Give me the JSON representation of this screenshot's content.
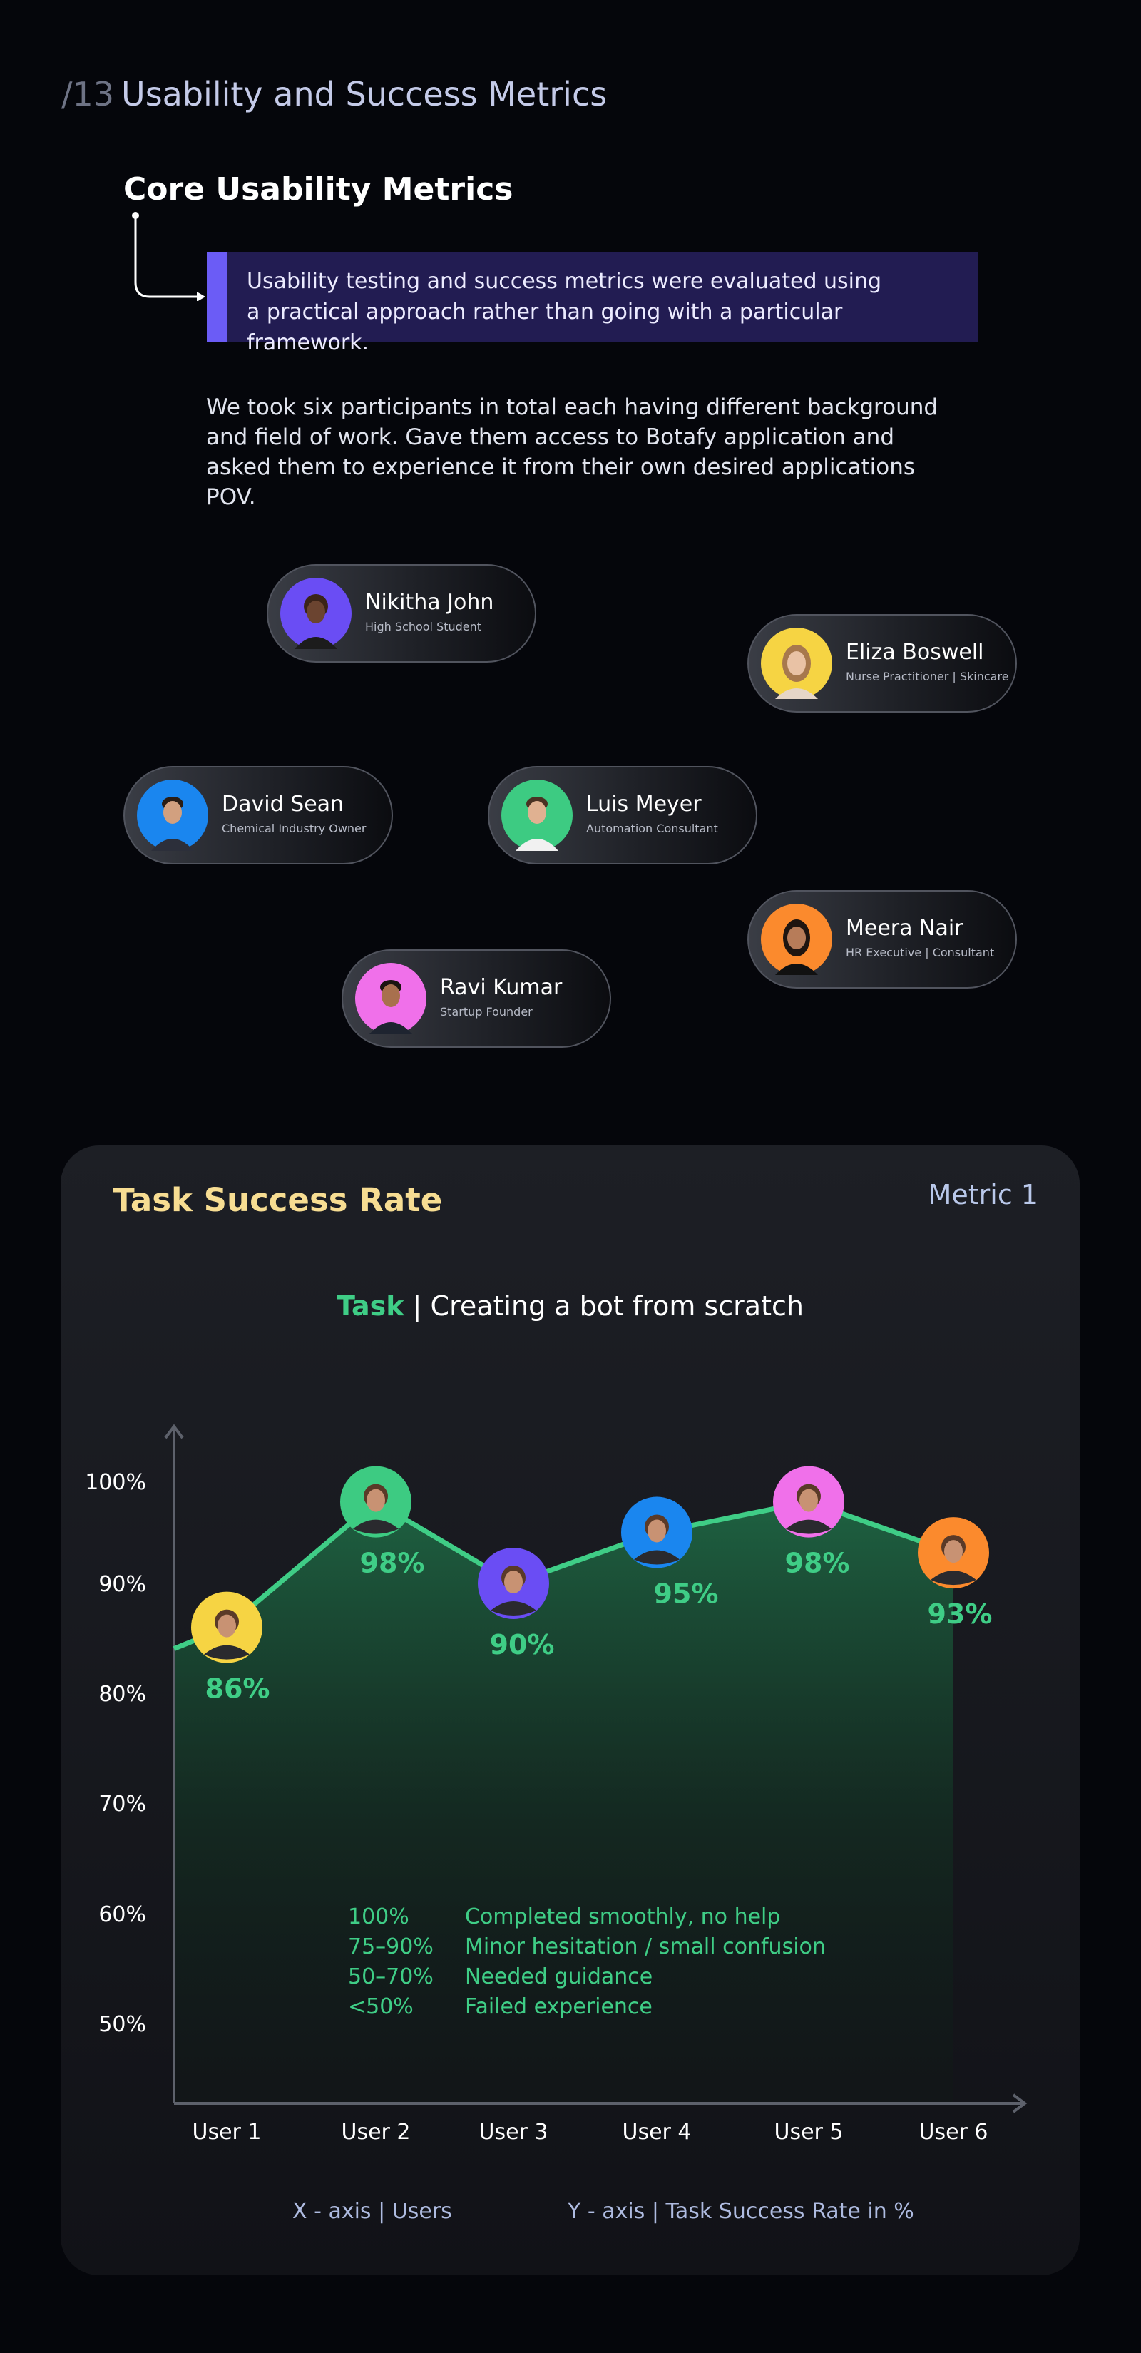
{
  "header": {
    "number": "/13",
    "title": "Usability and Success Metrics"
  },
  "core": {
    "title": "Core Usability Metrics",
    "callout_line1": "Usability testing and success metrics were evaluated using",
    "callout_line2": "a practical approach rather than going with a particular framework.",
    "intro": "We took six participants in total each having different background and field of work. Gave them access to Botafy application and asked them to experience it from their own desired applications POV."
  },
  "participants": [
    {
      "name": "Nikitha John",
      "role": "High School Student",
      "avatar_color": "#6a4df4",
      "avatar_icon": "person-avatar-icon"
    },
    {
      "name": "Eliza Boswell",
      "role": "Nurse Practitioner | Skincare",
      "avatar_color": "#f6d443",
      "avatar_icon": "person-avatar-icon"
    },
    {
      "name": "David Sean",
      "role": "Chemical Industry Owner",
      "avatar_color": "#1a86ef",
      "avatar_icon": "person-avatar-icon"
    },
    {
      "name": "Luis Meyer",
      "role": "Automation Consultant",
      "avatar_color": "#3dcb82",
      "avatar_icon": "person-avatar-icon"
    },
    {
      "name": "Meera Nair",
      "role": "HR Executive | Consultant",
      "avatar_color": "#fb8a2d",
      "avatar_icon": "person-avatar-icon"
    },
    {
      "name": "Ravi Kumar",
      "role": "Startup Founder",
      "avatar_color": "#f070ea",
      "avatar_icon": "person-avatar-icon"
    }
  ],
  "metric_card": {
    "title": "Task Success Rate",
    "metric_label": "Metric 1",
    "task_label": "Task",
    "task_text": " | Creating a bot from scratch",
    "legend": [
      {
        "range": "100%",
        "desc": "Completed smoothly, no help"
      },
      {
        "range": "75–90%",
        "desc": "Minor hesitation / small confusion"
      },
      {
        "range": "50–70%",
        "desc": "Needed guidance"
      },
      {
        "range": "<50%",
        "desc": "Failed experience"
      }
    ],
    "x_axis_note": "X - axis  |   Users",
    "y_axis_note": "Y - axis  |   Task Success Rate in %"
  },
  "colors": {
    "accent_green": "#3fcd86",
    "accent_yellow": "#f7dd92",
    "callout_bg": "#221c52",
    "callout_bar": "#6b5cf6"
  },
  "chart_data": {
    "type": "line",
    "title": "Task Success Rate",
    "xlabel": "Users",
    "ylabel": "Task Success Rate in %",
    "categories": [
      "User 1",
      "User 2",
      "User 3",
      "User 4",
      "User 5",
      "User 6"
    ],
    "values": [
      86,
      98,
      90,
      95,
      98,
      93
    ],
    "data_labels": [
      "86%",
      "98%",
      "90%",
      "95%",
      "98%",
      "93%"
    ],
    "y_ticks": [
      100,
      90,
      80,
      70,
      60,
      50
    ],
    "y_tick_labels": [
      "100%",
      "90%",
      "80%",
      "70%",
      "60%",
      "50%"
    ],
    "avatar_colors": [
      "#f6d443",
      "#3dcb82",
      "#6a4df4",
      "#1a86ef",
      "#f070ea",
      "#fb8a2d"
    ],
    "line_color": "#3fcd86",
    "area_fill": "gradient green",
    "grid": false
  }
}
